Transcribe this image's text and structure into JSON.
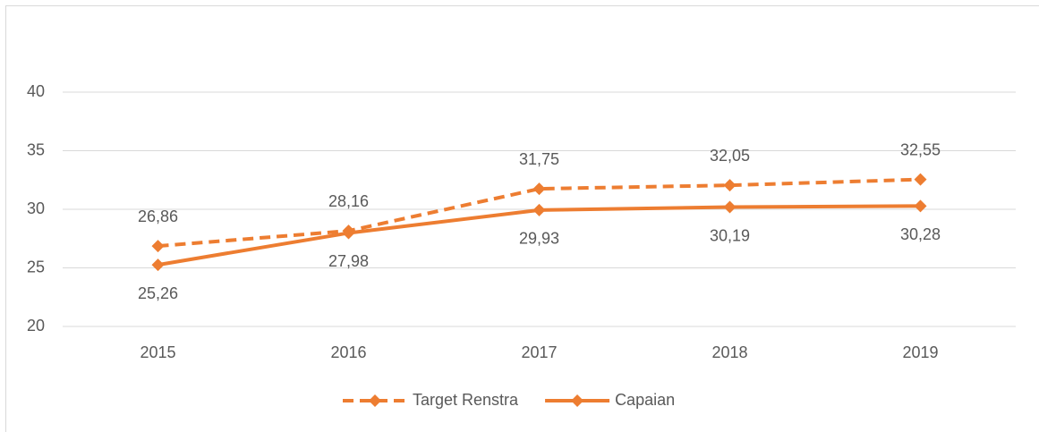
{
  "chart_data": {
    "type": "line",
    "categories": [
      "2015",
      "2016",
      "2017",
      "2018",
      "2019"
    ],
    "series": [
      {
        "name": "Target Renstra",
        "color": "#ed7d31",
        "line_style": "dashed",
        "marker": "diamond",
        "values": [
          26.86,
          28.16,
          31.75,
          32.05,
          32.55
        ],
        "value_labels": [
          "26,86",
          "28,16",
          "31,75",
          "32,05",
          "32,55"
        ],
        "label_position": "above"
      },
      {
        "name": "Capaian",
        "color": "#ed7d31",
        "line_style": "solid",
        "marker": "diamond",
        "values": [
          25.26,
          27.98,
          29.93,
          30.19,
          30.28
        ],
        "value_labels": [
          "25,26",
          "27,98",
          "29,93",
          "30,19",
          "30,28"
        ],
        "label_position": "below"
      }
    ],
    "ylim": [
      20,
      40
    ],
    "yticks": [
      20,
      25,
      30,
      35,
      40
    ],
    "grid": true,
    "legend": "bottom"
  }
}
